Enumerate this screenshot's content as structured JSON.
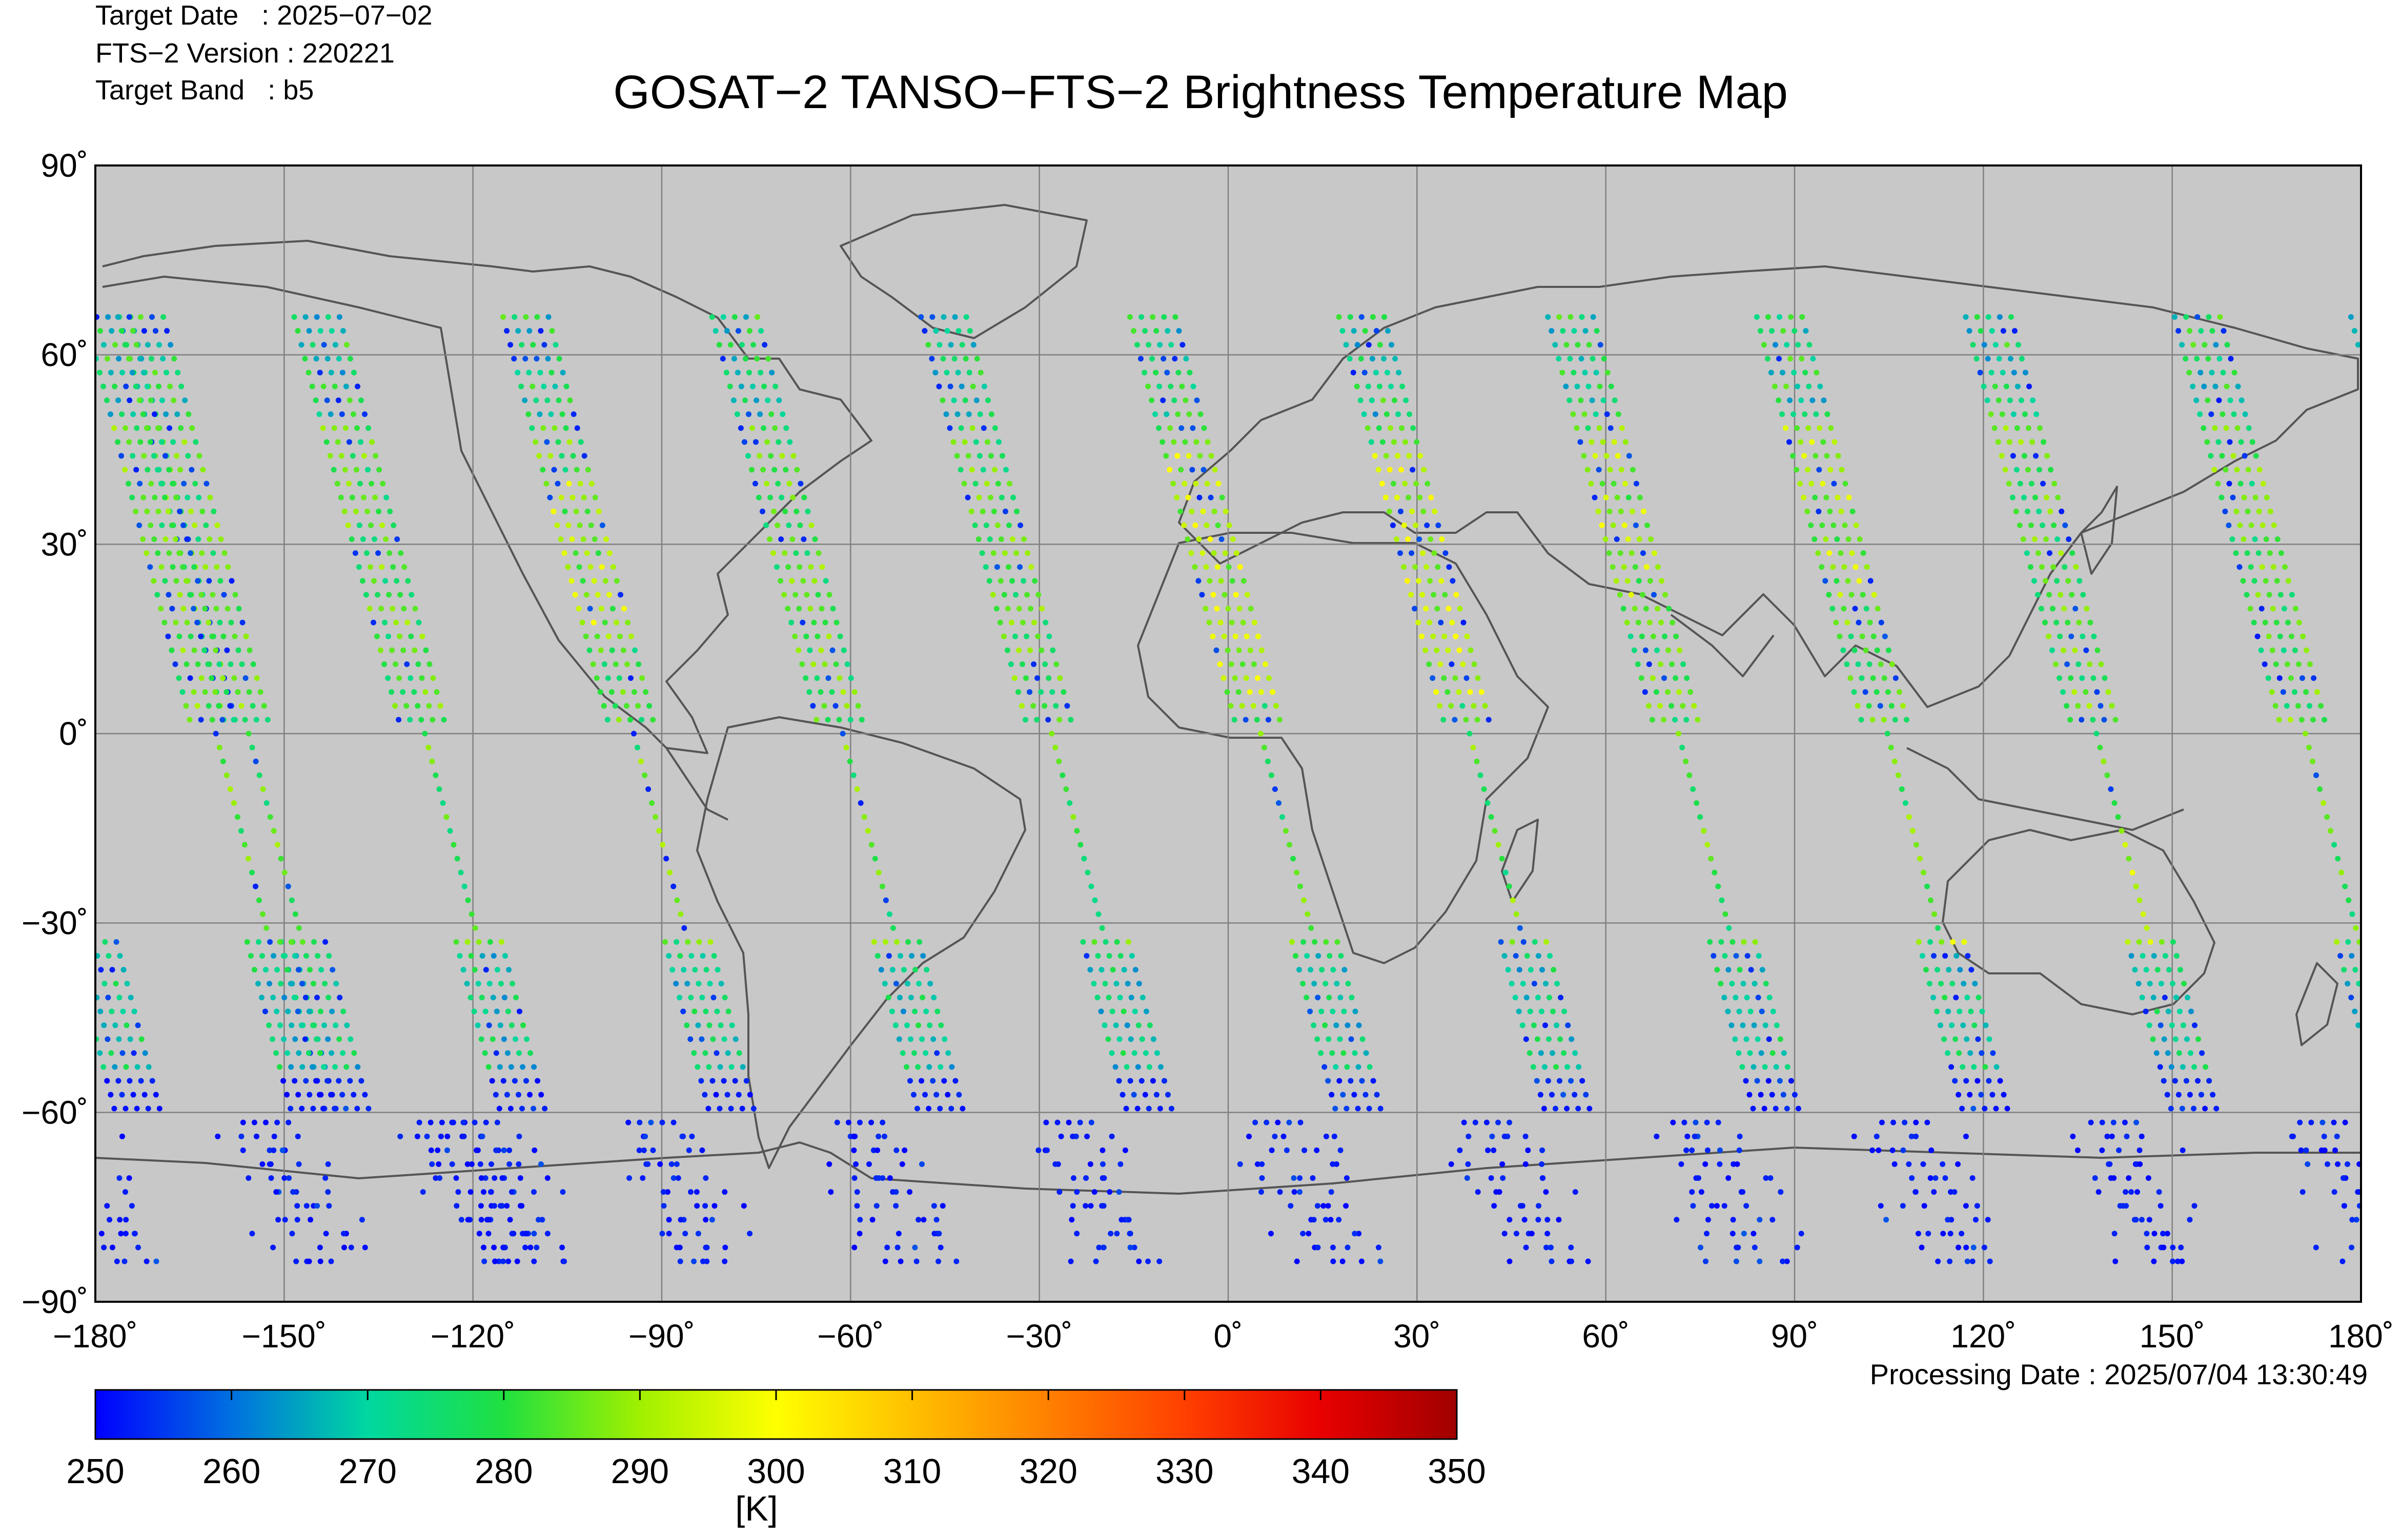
{
  "meta": {
    "target_date": "Target Date   : 2025−07−02",
    "version": "FTS−2 Version : 220221",
    "band": "Target Band   : b5"
  },
  "title": "GOSAT−2 TANSO−FTS−2 Brightness Temperature Map",
  "processing_date": "Processing Date : 2025/07/04 13:30:49",
  "map": {
    "lon_range": [
      -180,
      180
    ],
    "lat_range": [
      -90,
      90
    ],
    "lon_ticks": [
      "−180˚",
      "−150˚",
      "−120˚",
      "−90˚",
      "−60˚",
      "−30˚",
      "0˚",
      "30˚",
      "60˚",
      "90˚",
      "120˚",
      "150˚",
      "180˚"
    ],
    "lat_ticks": [
      "90˚",
      "60˚",
      "30˚",
      "0˚",
      "−30˚",
      "−60˚",
      "−90˚"
    ],
    "grid": true,
    "background_color": "#c8c8c8",
    "coastline_color": "#555555"
  },
  "colorbar": {
    "min": 250,
    "max": 350,
    "tick_labels": [
      "250",
      "260",
      "270",
      "280",
      "290",
      "300",
      "310",
      "320",
      "330",
      "340",
      "350"
    ],
    "unit": "[K]",
    "colors": [
      "#0000ff",
      "#0070e0",
      "#00d8a0",
      "#20e040",
      "#a0f000",
      "#ffff00",
      "#ffc000",
      "#ff8000",
      "#ff4000",
      "#e80000",
      "#a00000"
    ]
  }
}
